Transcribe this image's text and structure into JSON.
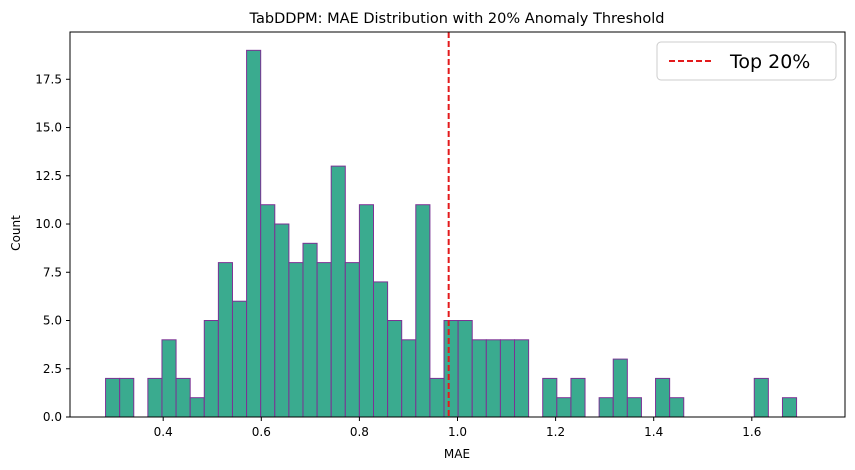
{
  "chart_data": {
    "type": "bar",
    "title": "TabDDPM: MAE Distribution with 20% Anomaly Threshold",
    "xlabel": "MAE",
    "ylabel": "Count",
    "bin_width": 0.02875,
    "bin_start": 0.2825,
    "counts": [
      2,
      2,
      0,
      2,
      4,
      2,
      1,
      5,
      8,
      6,
      19,
      11,
      10,
      8,
      9,
      8,
      13,
      8,
      11,
      7,
      5,
      4,
      11,
      2,
      5,
      5,
      4,
      4,
      4,
      4,
      0,
      2,
      1,
      2,
      0,
      1,
      3,
      1,
      0,
      2,
      1,
      0,
      0,
      0,
      0,
      0,
      2,
      0,
      1
    ],
    "xlim": [
      0.21,
      1.79
    ],
    "ylim": [
      0,
      19.95
    ],
    "xticks": [
      0.4,
      0.6,
      0.8,
      1.0,
      1.2,
      1.4,
      1.6
    ],
    "xtick_labels": [
      "0.4",
      "0.6",
      "0.8",
      "1.0",
      "1.2",
      "1.4",
      "1.6"
    ],
    "yticks": [
      0.0,
      2.5,
      5.0,
      7.5,
      10.0,
      12.5,
      15.0,
      17.5
    ],
    "ytick_labels": [
      "0.0",
      "2.5",
      "5.0",
      "7.5",
      "10.0",
      "12.5",
      "15.0",
      "17.5"
    ],
    "threshold": 0.982,
    "legend": {
      "label": "Top 20%",
      "position": "top-right"
    },
    "grid": false,
    "colors": {
      "bar_fill": "#3aab8f",
      "bar_edge": "#7b3294",
      "threshold": "#e31a1c",
      "axis": "#000000"
    }
  }
}
